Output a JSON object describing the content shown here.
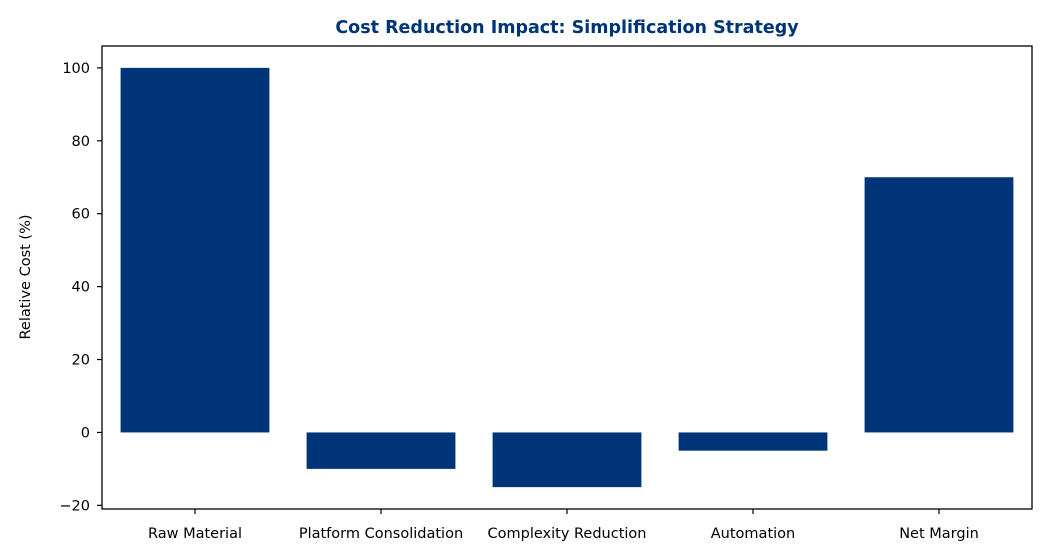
{
  "chart_data": {
    "type": "bar",
    "title": "Cost Reduction Impact: Simplification Strategy",
    "xlabel": "",
    "ylabel": "Relative Cost (%)",
    "categories": [
      "Raw Material",
      "Platform Consolidation",
      "Complexity Reduction",
      "Automation",
      "Net Margin"
    ],
    "values": [
      100,
      -10,
      -15,
      -5,
      70
    ],
    "ylim": [
      -21,
      106
    ],
    "yticks": [
      -20,
      0,
      20,
      40,
      60,
      80,
      100
    ],
    "bar_color": "#003478",
    "title_color": "#003478",
    "grid": false,
    "legend": false
  }
}
